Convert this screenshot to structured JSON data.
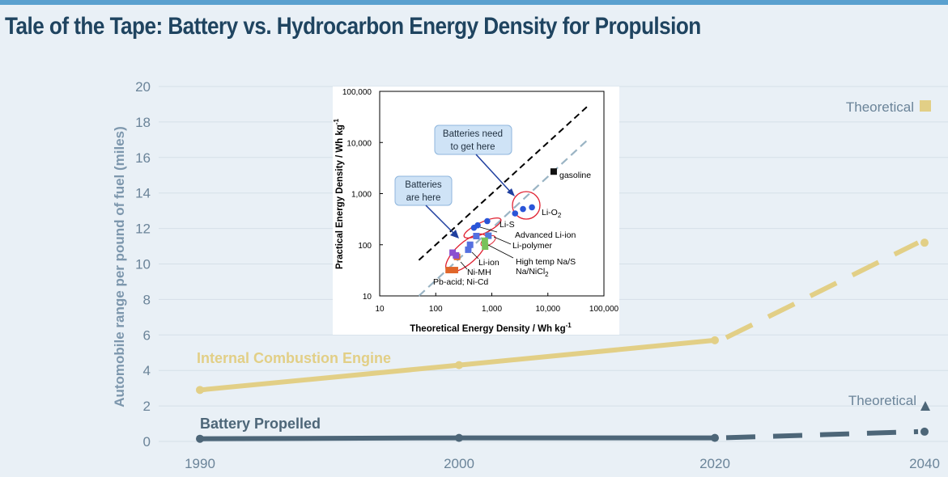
{
  "title": "Tale of the Tape: Battery vs. Hydrocarbon Energy Density for Propulsion",
  "chart_data": [
    {
      "type": "line",
      "ylabel": "Automobile range per pound of fuel (miles)",
      "x_ticks": [
        "1990",
        "2000",
        "2020",
        "2040"
      ],
      "y_ticks": [
        "0",
        "2",
        "4",
        "6",
        "8",
        "10",
        "12",
        "14",
        "16",
        "18",
        "20"
      ],
      "ylim": [
        0,
        20
      ],
      "grid": true,
      "series": [
        {
          "name": "Internal Combustion Engine",
          "color": "#e2cf86",
          "x": [
            1990,
            2000,
            2020
          ],
          "values": [
            2.9,
            4.3,
            5.7
          ],
          "projection_x": [
            2020,
            2040
          ],
          "projection_values": [
            5.7,
            11.2
          ],
          "theoretical_label": "Theoretical",
          "theoretical_marker": "square"
        },
        {
          "name": "Battery Propelled",
          "color": "#4d6678",
          "x": [
            1990,
            2000,
            2020
          ],
          "values": [
            0.15,
            0.2,
            0.2
          ],
          "projection_x": [
            2020,
            2040
          ],
          "projection_values": [
            0.2,
            0.55
          ],
          "theoretical_label": "Theoretical",
          "theoretical_marker": "triangle"
        }
      ]
    },
    {
      "type": "scatter",
      "xlabel_main": "Theoretical Energy Density / Wh kg",
      "xlabel_sup": "-1",
      "ylabel_main": "Practical Energy Density / Wh kg",
      "ylabel_sup": "-1",
      "x_scale": "log",
      "y_scale": "log",
      "xlim": [
        10,
        100000
      ],
      "ylim": [
        10,
        100000
      ],
      "x_ticks": [
        "10",
        "100",
        "1,000",
        "10,000",
        "100,000"
      ],
      "y_ticks": [
        "10",
        "100",
        "1,000",
        "10,000",
        "100,000"
      ],
      "reference_lines": [
        {
          "name": "target",
          "style": "dashed",
          "color": "#000000",
          "x": [
            50,
            50000
          ],
          "y": [
            50,
            50000
          ]
        },
        {
          "name": "trend",
          "style": "dashed",
          "color": "#9ab4c4",
          "x": [
            50,
            50000
          ],
          "y": [
            10,
            11000
          ]
        }
      ],
      "points": [
        {
          "group": "Pb-acid; Ni-Cd",
          "marker": "square",
          "color": "#e0662a",
          "x": 170,
          "y": 32
        },
        {
          "group": "Pb-acid; Ni-Cd",
          "marker": "square",
          "color": "#e0662a",
          "x": 220,
          "y": 32
        },
        {
          "group": "Pb-acid; Ni-Cd",
          "marker": "square",
          "color": "#e0662a",
          "x": 240,
          "y": 58
        },
        {
          "group": "Ni-MH",
          "marker": "square",
          "color": "#8a4fd0",
          "x": 200,
          "y": 70
        },
        {
          "group": "Ni-MH",
          "marker": "square",
          "color": "#8a4fd0",
          "x": 230,
          "y": 62
        },
        {
          "group": "Li-ion",
          "marker": "square",
          "color": "#5570e0",
          "x": 380,
          "y": 80
        },
        {
          "group": "Li-ion",
          "marker": "square",
          "color": "#5570e0",
          "x": 410,
          "y": 100
        },
        {
          "group": "Li-ion",
          "marker": "square",
          "color": "#5570e0",
          "x": 530,
          "y": 148
        },
        {
          "group": "Li-polymer",
          "marker": "square",
          "color": "#4f7ae0",
          "x": 870,
          "y": 150
        },
        {
          "group": "High temp Na/S",
          "marker": "square",
          "color": "#78c25a",
          "x": 750,
          "y": 120
        },
        {
          "group": "Na/NiCl2",
          "marker": "square",
          "color": "#78c25a",
          "x": 760,
          "y": 92
        },
        {
          "group": "Advanced Li-ion",
          "marker": "circle",
          "color": "#2a55d8",
          "x": 480,
          "y": 215
        },
        {
          "group": "Advanced Li-ion",
          "marker": "circle",
          "color": "#2a55d8",
          "x": 560,
          "y": 240
        },
        {
          "group": "Li-S",
          "marker": "circle",
          "color": "#2a55d8",
          "x": 830,
          "y": 290
        },
        {
          "group": "Li-O2",
          "marker": "circle",
          "color": "#2a55d8",
          "x": 2600,
          "y": 410
        },
        {
          "group": "Li-O2",
          "marker": "circle",
          "color": "#2a55d8",
          "x": 3600,
          "y": 500
        },
        {
          "group": "Li-O2",
          "marker": "circle",
          "color": "#2a55d8",
          "x": 5200,
          "y": 540
        },
        {
          "group": "gasoline",
          "marker": "square",
          "color": "#111111",
          "x": 12700,
          "y": 2700
        }
      ],
      "labels": {
        "gasoline": "gasoline",
        "lio2_main": "Li-O",
        "lio2_sub": "2",
        "lis": "Li-S",
        "adv_liion": "Advanced Li-ion",
        "lipolymer": "Li-polymer",
        "liion": "Li-ion",
        "nas": "High temp Na/S",
        "nanicl_main": "Na/NiCl",
        "nanicl_sub": "2",
        "nimh": "Ni-MH",
        "pbacid": "Pb-acid; Ni-Cd"
      },
      "callouts": [
        {
          "lines": [
            "Batteries need",
            "to get here"
          ]
        },
        {
          "lines": [
            "Batteries",
            "are here"
          ]
        }
      ]
    }
  ]
}
